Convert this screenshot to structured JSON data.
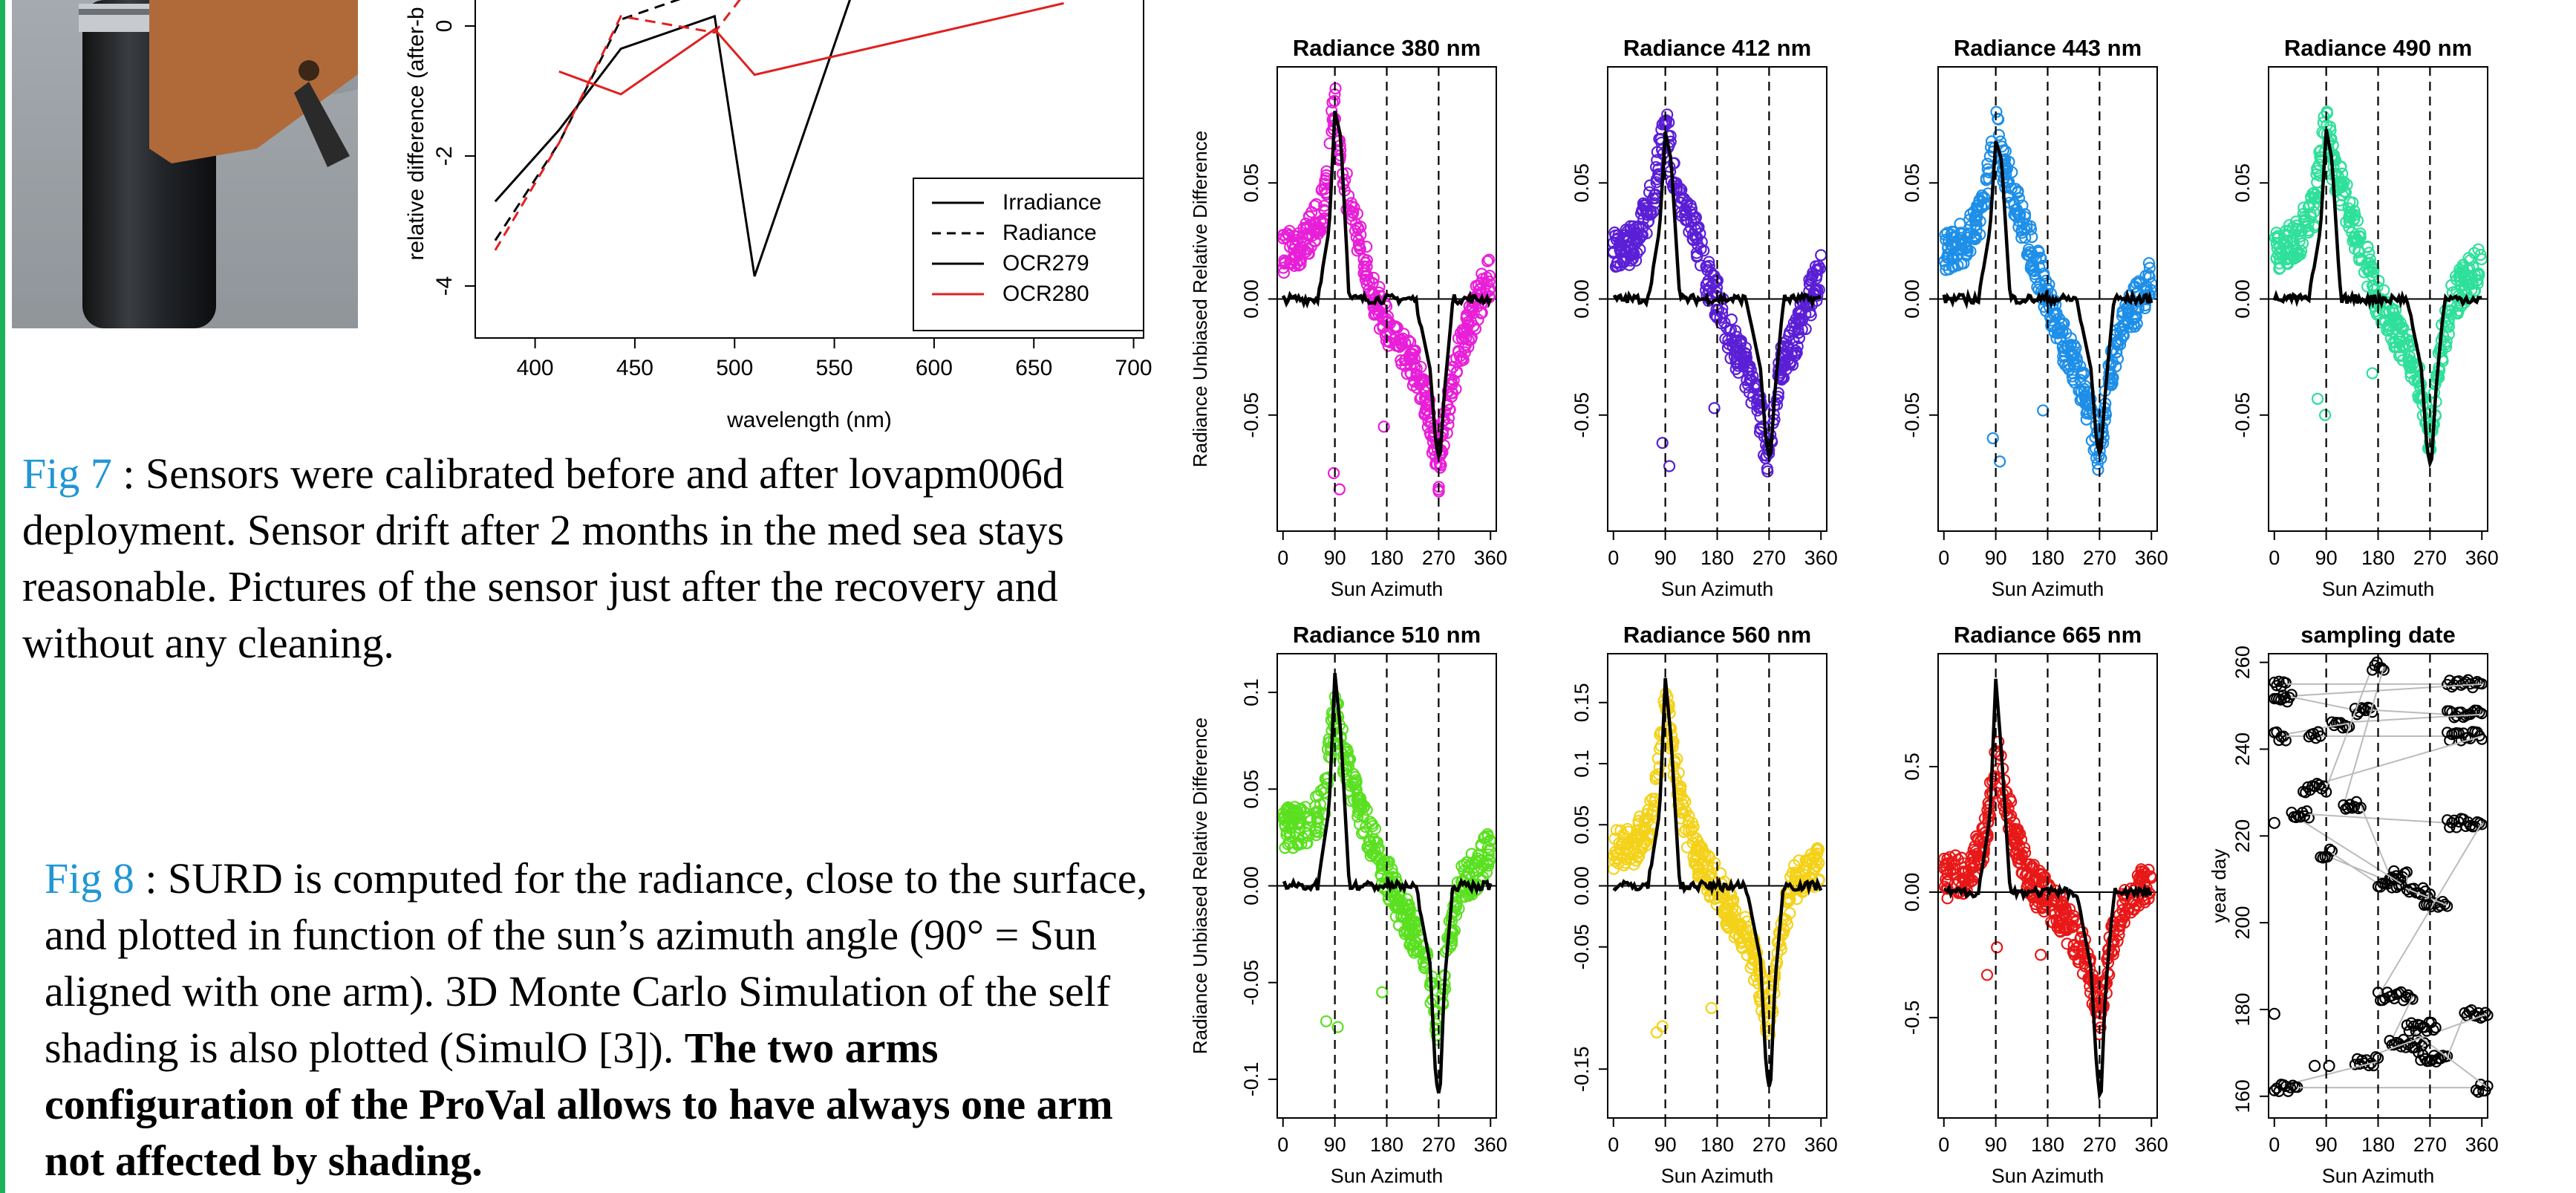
{
  "photo": {
    "label": "sensor-photo"
  },
  "drift_chart": {
    "type": "line",
    "xlabel": "wavelength (nm)",
    "ylabel": "relative difference (after-b",
    "x_ticks": [
      "400",
      "450",
      "500",
      "550",
      "600",
      "650",
      "700"
    ],
    "y_ticks": [
      "0",
      "-2",
      "-4"
    ],
    "xlim": [
      370,
      705
    ],
    "ylim": [
      -4.8,
      0.4
    ],
    "legend": {
      "position": "bottom-right",
      "entries": [
        {
          "name": "Irradiance",
          "color": "#000000",
          "dash": "solid"
        },
        {
          "name": "Radiance",
          "color": "#000000",
          "dash": "dashed"
        },
        {
          "name": "OCR279",
          "color": "#000000",
          "dash": "solid"
        },
        {
          "name": "OCR280",
          "color": "#e02020",
          "dash": "solid"
        }
      ]
    },
    "series": [
      {
        "color": "#000000",
        "dash": "solid",
        "x": [
          380,
          412,
          443,
          490,
          510,
          560
        ],
        "y": [
          -2.7,
          -1.6,
          -0.35,
          0.15,
          -3.85,
          0.6
        ]
      },
      {
        "color": "#000000",
        "dash": "dashed",
        "x": [
          380,
          412,
          443,
          490,
          510
        ],
        "y": [
          -3.3,
          -1.8,
          0.1,
          0.6,
          0.6
        ]
      },
      {
        "color": "#e02020",
        "dash": "dashed",
        "x": [
          380,
          412,
          443,
          490,
          510
        ],
        "y": [
          -3.45,
          -1.8,
          0.15,
          -0.1,
          0.7
        ]
      },
      {
        "color": "#e02020",
        "dash": "solid",
        "x": [
          412,
          443,
          490,
          510,
          665
        ],
        "y": [
          -0.7,
          -1.05,
          -0.05,
          -0.75,
          0.35
        ]
      }
    ]
  },
  "captions": {
    "fig7_label": "Fig 7",
    "fig7_text": " : Sensors were calibrated before and after lovapm006d deployment. Sensor drift after 2 months in the med sea stays reasonable. Pictures of the sensor just after the recovery and without any cleaning.",
    "fig8_label": "Fig 8",
    "fig8_text": " : SURD is computed for the radiance, close to the surface, and plotted in function of the sun’s azimuth angle (90° = Sun aligned with one arm). 3D Monte Carlo Simulation of the self shading is also plotted (SimulO [3]). ",
    "fig8_bold": "The two arms configuration of the ProVal allows to have always one arm not affected by shading."
  },
  "chart_data": [
    {
      "type": "scatter",
      "title": "Radiance 380 nm",
      "xlabel": "Sun Azimuth",
      "ylabel": "Radiance Unbiased Relative Difference",
      "color": "#e81fd8",
      "xlim": [
        -10,
        370
      ],
      "ylim": [
        -0.1,
        0.1
      ],
      "x_ticks": [
        0,
        90,
        180,
        270,
        360
      ],
      "y_ticks": [
        -0.05,
        0.0,
        0.05
      ],
      "vlines": [
        90,
        180,
        270
      ],
      "hline": 0,
      "envelope": {
        "azimuth": [
          0,
          40,
          70,
          85,
          92,
          100,
          120,
          140,
          160,
          180,
          200,
          230,
          250,
          262,
          270,
          278,
          290,
          310,
          340,
          360
        ],
        "value": [
          0.02,
          0.025,
          0.04,
          0.075,
          0.085,
          0.06,
          0.035,
          0.02,
          0.0,
          -0.01,
          -0.02,
          -0.03,
          -0.045,
          -0.065,
          -0.075,
          -0.06,
          -0.04,
          -0.02,
          0.0,
          0.01
        ]
      },
      "simulation": {
        "azimuth": [
          0,
          60,
          80,
          90,
          100,
          115,
          170,
          230,
          255,
          265,
          272,
          280,
          295,
          330,
          360
        ],
        "value": [
          0.0,
          0.0,
          0.03,
          0.081,
          0.07,
          0.0,
          0.0,
          0.0,
          -0.03,
          -0.062,
          -0.07,
          -0.04,
          0.0,
          0.0,
          0.0
        ]
      },
      "outliers": [
        [
          88,
          -0.075
        ],
        [
          98,
          -0.082
        ],
        [
          175,
          -0.055
        ],
        [
          40,
          0.03
        ]
      ]
    },
    {
      "type": "scatter",
      "title": "Radiance 412 nm",
      "xlabel": "Sun Azimuth",
      "ylabel": "",
      "color": "#5b1fd6",
      "xlim": [
        -10,
        370
      ],
      "ylim": [
        -0.1,
        0.1
      ],
      "x_ticks": [
        0,
        90,
        180,
        270,
        360
      ],
      "y_ticks": [
        -0.05,
        0.0,
        0.05
      ],
      "vlines": [
        90,
        180,
        270
      ],
      "hline": 0,
      "envelope": {
        "azimuth": [
          0,
          40,
          70,
          85,
          92,
          100,
          120,
          140,
          160,
          180,
          200,
          230,
          250,
          262,
          270,
          278,
          290,
          310,
          340,
          360
        ],
        "value": [
          0.02,
          0.025,
          0.045,
          0.07,
          0.075,
          0.06,
          0.04,
          0.03,
          0.01,
          0.0,
          -0.015,
          -0.03,
          -0.045,
          -0.06,
          -0.07,
          -0.05,
          -0.03,
          -0.02,
          0.0,
          0.01
        ]
      },
      "simulation": {
        "azimuth": [
          0,
          60,
          80,
          90,
          100,
          115,
          170,
          230,
          255,
          265,
          272,
          280,
          295,
          330,
          360
        ],
        "value": [
          0.0,
          0.0,
          0.03,
          0.072,
          0.06,
          0.0,
          0.0,
          0.0,
          -0.03,
          -0.062,
          -0.07,
          -0.04,
          0.0,
          0.0,
          0.0
        ]
      },
      "outliers": [
        [
          85,
          -0.062
        ],
        [
          97,
          -0.072
        ],
        [
          175,
          -0.047
        ]
      ]
    },
    {
      "type": "scatter",
      "title": "Radiance 443 nm",
      "xlabel": "Sun Azimuth",
      "ylabel": "",
      "color": "#1e8fe8",
      "xlim": [
        -10,
        370
      ],
      "ylim": [
        -0.1,
        0.1
      ],
      "x_ticks": [
        0,
        90,
        180,
        270,
        360
      ],
      "y_ticks": [
        -0.05,
        0.0,
        0.05
      ],
      "vlines": [
        90,
        180,
        270
      ],
      "hline": 0,
      "envelope": {
        "azimuth": [
          0,
          40,
          70,
          85,
          92,
          100,
          120,
          140,
          160,
          180,
          200,
          230,
          250,
          262,
          270,
          278,
          290,
          310,
          340,
          360
        ],
        "value": [
          0.02,
          0.025,
          0.04,
          0.07,
          0.075,
          0.06,
          0.045,
          0.03,
          0.015,
          0.0,
          -0.015,
          -0.03,
          -0.045,
          -0.06,
          -0.068,
          -0.05,
          -0.03,
          -0.01,
          0.0,
          0.01
        ]
      },
      "simulation": {
        "azimuth": [
          0,
          60,
          80,
          90,
          100,
          115,
          170,
          230,
          255,
          265,
          272,
          280,
          295,
          330,
          360
        ],
        "value": [
          0.0,
          0.0,
          0.03,
          0.068,
          0.06,
          0.0,
          0.0,
          0.0,
          -0.03,
          -0.062,
          -0.068,
          -0.04,
          0.0,
          0.0,
          0.0
        ]
      },
      "outliers": [
        [
          85,
          -0.06
        ],
        [
          97,
          -0.07
        ],
        [
          172,
          -0.048
        ]
      ]
    },
    {
      "type": "scatter",
      "title": "Radiance 490 nm",
      "xlabel": "Sun Azimuth",
      "ylabel": "",
      "color": "#2fe09a",
      "xlim": [
        -10,
        370
      ],
      "ylim": [
        -0.1,
        0.1
      ],
      "x_ticks": [
        0,
        90,
        180,
        270,
        360
      ],
      "y_ticks": [
        -0.05,
        0.0,
        0.05
      ],
      "vlines": [
        90,
        180,
        270
      ],
      "hline": 0,
      "envelope": {
        "azimuth": [
          0,
          40,
          70,
          85,
          92,
          100,
          120,
          140,
          160,
          180,
          200,
          230,
          250,
          262,
          270,
          278,
          290,
          310,
          340,
          360
        ],
        "value": [
          0.02,
          0.025,
          0.04,
          0.07,
          0.075,
          0.06,
          0.045,
          0.03,
          0.015,
          0.0,
          -0.01,
          -0.02,
          -0.035,
          -0.05,
          -0.06,
          -0.045,
          -0.02,
          0.0,
          0.01,
          0.015
        ]
      },
      "simulation": {
        "azimuth": [
          0,
          60,
          80,
          90,
          100,
          115,
          170,
          230,
          255,
          265,
          272,
          280,
          295,
          330,
          360
        ],
        "value": [
          0.0,
          0.0,
          0.03,
          0.073,
          0.06,
          0.0,
          0.0,
          0.0,
          -0.03,
          -0.065,
          -0.073,
          -0.04,
          0.0,
          0.0,
          0.0
        ]
      },
      "outliers": [
        [
          75,
          -0.043
        ],
        [
          88,
          -0.05
        ],
        [
          170,
          -0.032
        ]
      ]
    },
    {
      "type": "scatter",
      "title": "Radiance 510 nm",
      "xlabel": "Sun Azimuth",
      "ylabel": "Radiance Unbiased Relative Difference",
      "color": "#5ae020",
      "xlim": [
        -10,
        370
      ],
      "ylim": [
        -0.12,
        0.12
      ],
      "x_ticks": [
        0,
        90,
        180,
        270,
        360
      ],
      "y_ticks": [
        -0.1,
        -0.05,
        0.0,
        0.05,
        0.1
      ],
      "vlines": [
        90,
        180,
        270
      ],
      "hline": 0,
      "envelope": {
        "azimuth": [
          0,
          40,
          70,
          85,
          92,
          100,
          120,
          140,
          160,
          180,
          200,
          230,
          250,
          262,
          270,
          278,
          290,
          310,
          340,
          360
        ],
        "value": [
          0.03,
          0.03,
          0.04,
          0.08,
          0.09,
          0.075,
          0.05,
          0.035,
          0.02,
          0.005,
          -0.01,
          -0.025,
          -0.04,
          -0.06,
          -0.075,
          -0.05,
          -0.025,
          0.0,
          0.01,
          0.02
        ]
      },
      "simulation": {
        "azimuth": [
          0,
          60,
          80,
          90,
          100,
          115,
          170,
          230,
          255,
          265,
          272,
          280,
          295,
          330,
          360
        ],
        "value": [
          0.0,
          0.0,
          0.04,
          0.11,
          0.08,
          0.0,
          0.0,
          0.0,
          -0.04,
          -0.1,
          -0.11,
          -0.05,
          0.0,
          0.0,
          0.0
        ]
      },
      "outliers": [
        [
          75,
          -0.07
        ],
        [
          95,
          -0.073
        ],
        [
          172,
          -0.055
        ]
      ]
    },
    {
      "type": "scatter",
      "title": "Radiance 560 nm",
      "xlabel": "Sun Azimuth",
      "ylabel": "",
      "color": "#f4d21a",
      "xlim": [
        -10,
        370
      ],
      "ylim": [
        -0.19,
        0.19
      ],
      "x_ticks": [
        0,
        90,
        180,
        270,
        360
      ],
      "y_ticks": [
        -0.15,
        -0.05,
        0.0,
        0.05,
        0.1,
        0.15
      ],
      "vlines": [
        90,
        180,
        270
      ],
      "hline": 0,
      "envelope": {
        "azimuth": [
          0,
          40,
          70,
          85,
          92,
          100,
          120,
          140,
          160,
          180,
          200,
          230,
          250,
          262,
          270,
          278,
          290,
          310,
          340,
          360
        ],
        "value": [
          0.03,
          0.035,
          0.06,
          0.13,
          0.15,
          0.12,
          0.06,
          0.03,
          0.01,
          0.0,
          -0.02,
          -0.04,
          -0.07,
          -0.1,
          -0.12,
          -0.08,
          -0.04,
          0.0,
          0.01,
          0.02
        ]
      },
      "simulation": {
        "azimuth": [
          0,
          60,
          80,
          90,
          100,
          115,
          170,
          230,
          255,
          265,
          272,
          280,
          295,
          330,
          360
        ],
        "value": [
          0.0,
          0.0,
          0.06,
          0.17,
          0.12,
          0.0,
          0.0,
          0.0,
          -0.06,
          -0.15,
          -0.17,
          -0.08,
          0.0,
          0.0,
          0.0
        ]
      },
      "outliers": [
        [
          75,
          -0.12
        ],
        [
          85,
          -0.115
        ],
        [
          170,
          -0.1
        ]
      ]
    },
    {
      "type": "scatter",
      "title": "Radiance 665 nm",
      "xlabel": "Sun Azimuth",
      "ylabel": "",
      "color": "#e81818",
      "xlim": [
        -10,
        370
      ],
      "ylim": [
        -0.9,
        0.95
      ],
      "x_ticks": [
        0,
        90,
        180,
        270,
        360
      ],
      "y_ticks": [
        -0.5,
        0.0,
        0.5
      ],
      "vlines": [
        90,
        180,
        270
      ],
      "hline": 0,
      "envelope": {
        "azimuth": [
          0,
          40,
          70,
          85,
          92,
          100,
          120,
          140,
          160,
          180,
          200,
          230,
          250,
          262,
          270,
          278,
          290,
          310,
          340,
          360
        ],
        "value": [
          0.05,
          0.08,
          0.2,
          0.45,
          0.55,
          0.45,
          0.25,
          0.1,
          0.02,
          -0.02,
          -0.08,
          -0.18,
          -0.3,
          -0.42,
          -0.5,
          -0.4,
          -0.2,
          -0.05,
          0.02,
          0.05
        ]
      },
      "simulation": {
        "azimuth": [
          0,
          60,
          80,
          90,
          100,
          115,
          170,
          230,
          255,
          265,
          272,
          280,
          295,
          330,
          360
        ],
        "value": [
          0.0,
          0.0,
          0.3,
          0.85,
          0.55,
          0.0,
          0.0,
          0.0,
          -0.3,
          -0.7,
          -0.85,
          -0.4,
          0.0,
          0.0,
          0.0
        ]
      },
      "outliers": [
        [
          75,
          -0.33
        ],
        [
          92,
          -0.22
        ],
        [
          168,
          -0.25
        ]
      ]
    },
    {
      "type": "scatter",
      "title": "sampling date",
      "xlabel": "Sun Azimuth",
      "ylabel": "year day",
      "color": "#000000",
      "xlim": [
        -10,
        370
      ],
      "ylim": [
        155,
        262
      ],
      "x_ticks": [
        0,
        90,
        180,
        270,
        360
      ],
      "y_ticks": [
        160,
        180,
        200,
        220,
        240,
        260
      ],
      "vlines": [
        90,
        180,
        270
      ],
      "hline": null,
      "clusters": [
        [
          0,
          20,
          255
        ],
        [
          300,
          360,
          255
        ],
        [
          0,
          30,
          252
        ],
        [
          140,
          170,
          249
        ],
        [
          300,
          360,
          248
        ],
        [
          100,
          130,
          246
        ],
        [
          0,
          20,
          243
        ],
        [
          60,
          80,
          243
        ],
        [
          300,
          360,
          243
        ],
        [
          50,
          90,
          231
        ],
        [
          170,
          190,
          259
        ],
        [
          120,
          150,
          227
        ],
        [
          200,
          230,
          211
        ],
        [
          230,
          270,
          207
        ],
        [
          260,
          300,
          204
        ],
        [
          80,
          100,
          216
        ],
        [
          180,
          220,
          209
        ],
        [
          30,
          60,
          225
        ],
        [
          300,
          360,
          223
        ],
        [
          180,
          240,
          183
        ],
        [
          200,
          260,
          172
        ],
        [
          250,
          300,
          169
        ],
        [
          330,
          370,
          179
        ],
        [
          140,
          180,
          168
        ],
        [
          0,
          40,
          162
        ],
        [
          350,
          370,
          162
        ],
        [
          230,
          280,
          176
        ]
      ],
      "outliers": [
        [
          0,
          223
        ],
        [
          0,
          179
        ],
        [
          70,
          167
        ],
        [
          95,
          167
        ]
      ]
    }
  ],
  "colors": {
    "frame": "#000000",
    "caption_link": "#2196d6",
    "left_bar": "#1db35a"
  }
}
